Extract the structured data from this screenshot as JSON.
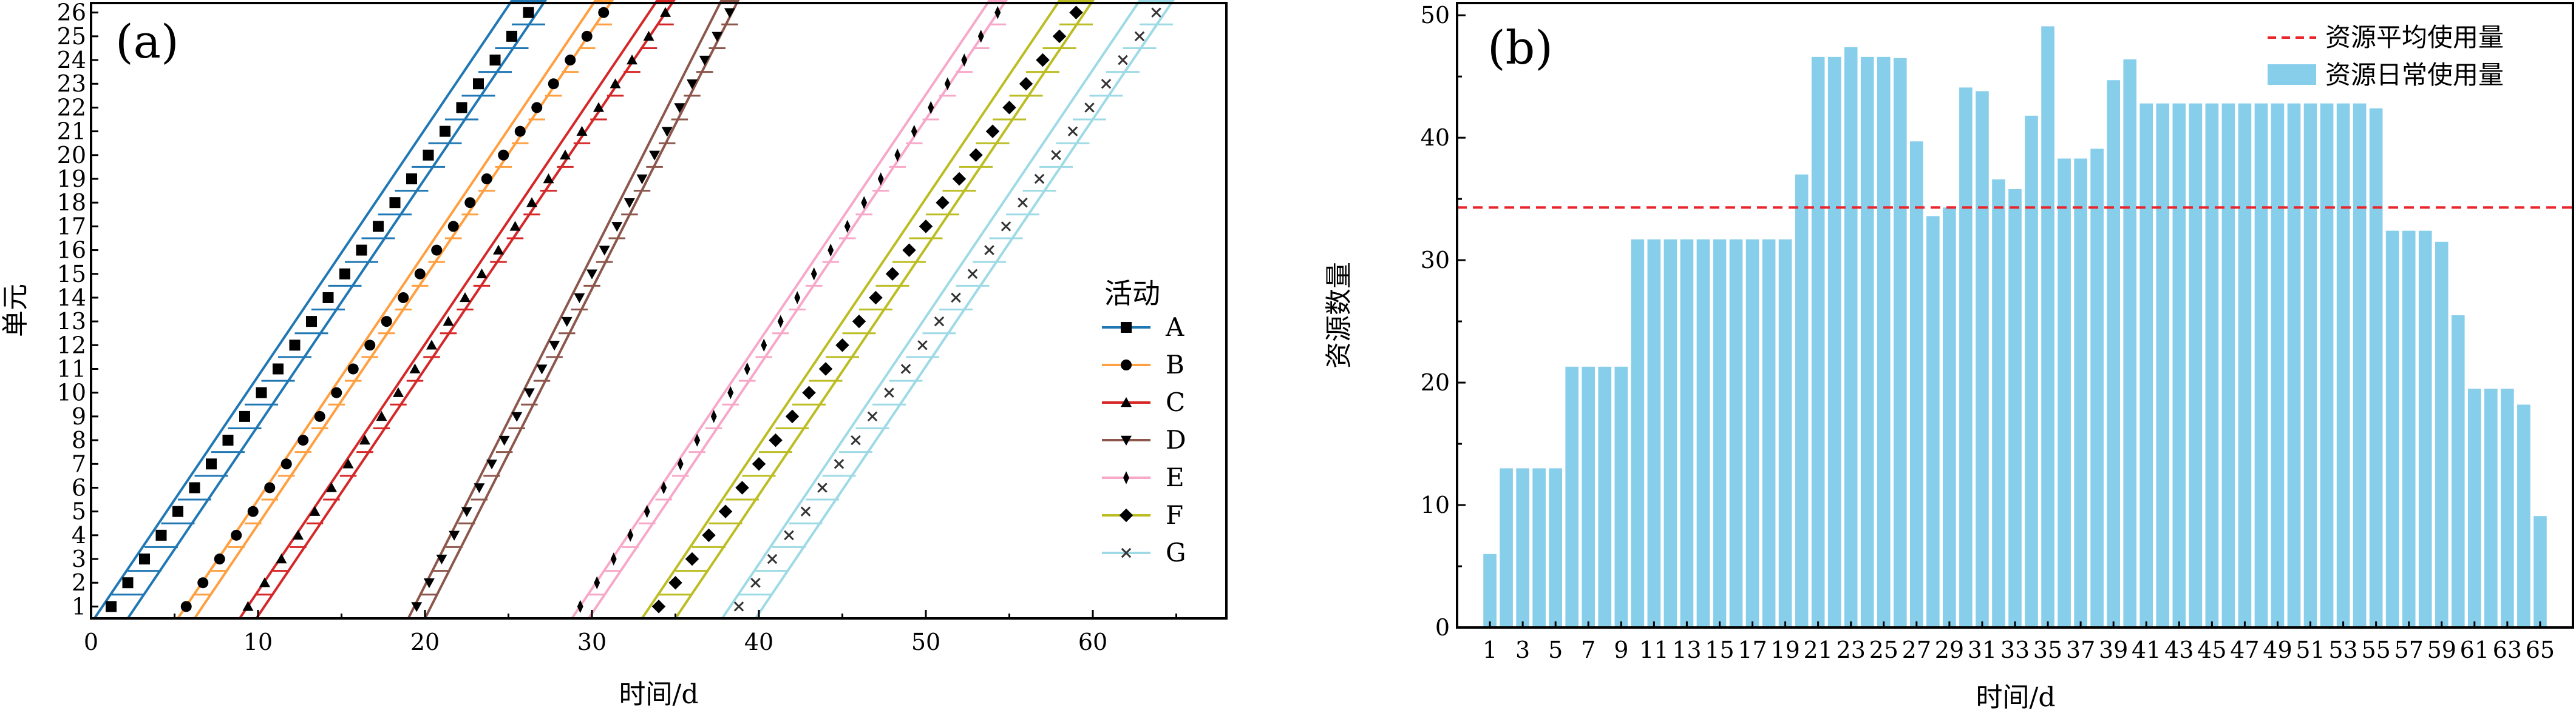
{
  "figure": {
    "panel_a_tag": "(a)",
    "panel_b_tag": "(b)"
  },
  "chart_data": [
    {
      "type": "line",
      "title": "",
      "xlabel": "时间/d",
      "ylabel": "单元",
      "xlim": [
        0,
        68
      ],
      "ylim": [
        0.5,
        26.4
      ],
      "xticks": [
        0,
        10,
        20,
        30,
        40,
        50,
        60
      ],
      "yticks": [
        1,
        2,
        3,
        4,
        5,
        6,
        7,
        8,
        9,
        10,
        11,
        12,
        13,
        14,
        15,
        16,
        17,
        18,
        19,
        20,
        21,
        22,
        23,
        24,
        25,
        26
      ],
      "grid": false,
      "legend": {
        "title": "活动",
        "placement": "center-right"
      },
      "units_from": 1,
      "units_to": 26,
      "series": [
        {
          "name": "A",
          "color": "#1f77b4",
          "marker": "square",
          "start": 0.2,
          "rate": 1.0,
          "duration": 2.0
        },
        {
          "name": "B",
          "color": "#ff9f40",
          "marker": "circle",
          "start": 5.2,
          "rate": 1.0,
          "duration": 1.0
        },
        {
          "name": "C",
          "color": "#d62728",
          "marker": "triangle-up",
          "start": 8.9,
          "rate": 1.0,
          "duration": 1.0
        },
        {
          "name": "D",
          "color": "#8c564b",
          "marker": "triangle-down",
          "start": 19.0,
          "rate": 0.75,
          "duration": 1.0
        },
        {
          "name": "E",
          "color": "#f7a8c8",
          "marker": "thin-diamond",
          "start": 28.8,
          "rate": 1.0,
          "duration": 1.0
        },
        {
          "name": "F",
          "color": "#bcbd22",
          "marker": "diamond",
          "start": 33.0,
          "rate": 1.0,
          "duration": 2.0
        },
        {
          "name": "G",
          "color": "#9edae5",
          "marker": "x",
          "start": 37.8,
          "rate": 1.0,
          "duration": 2.0
        }
      ]
    },
    {
      "type": "bar",
      "title": "",
      "xlabel": "时间/d",
      "ylabel": "资源数量",
      "xlim": [
        -1,
        67
      ],
      "ylim": [
        0,
        51
      ],
      "yticks": [
        0,
        10,
        20,
        30,
        40,
        50
      ],
      "xtick_labels": [
        "1",
        "3",
        "5",
        "7",
        "9",
        "11",
        "13",
        "15",
        "17",
        "19",
        "21",
        "23",
        "25",
        "27",
        "29",
        "31",
        "33",
        "35",
        "37",
        "39",
        "41",
        "43",
        "45",
        "47",
        "49",
        "51",
        "53",
        "55",
        "57",
        "59",
        "61",
        "63",
        "65"
      ],
      "grid": false,
      "legend": {
        "placement": "top-right"
      },
      "average": {
        "name": "资源平均使用量",
        "value": 34.3,
        "color": "#e8262b"
      },
      "series": [
        {
          "name": "资源日常使用量",
          "color": "#87ceeb",
          "x": [
            1,
            2,
            3,
            4,
            5,
            6,
            7,
            8,
            9,
            10,
            11,
            12,
            13,
            14,
            15,
            16,
            17,
            18,
            19,
            20,
            21,
            22,
            23,
            24,
            25,
            26,
            27,
            28,
            29,
            30,
            31,
            32,
            33,
            34,
            35,
            36,
            37,
            38,
            39,
            40,
            41,
            42,
            43,
            44,
            45,
            46,
            47,
            48,
            49,
            50,
            51,
            52,
            53,
            54,
            55,
            56,
            57,
            58,
            59,
            60,
            61,
            62,
            63,
            64,
            65
          ],
          "values": [
            6,
            13,
            13,
            13,
            13,
            21.3,
            21.3,
            21.3,
            21.3,
            31.7,
            31.7,
            31.7,
            31.7,
            31.7,
            31.7,
            31.7,
            31.7,
            31.7,
            31.7,
            37,
            46.6,
            46.6,
            47.4,
            46.6,
            46.6,
            46.5,
            39.7,
            33.6,
            34.3,
            44.1,
            43.8,
            36.6,
            35.8,
            41.8,
            49.1,
            38.3,
            38.3,
            39.1,
            44.7,
            46.4,
            42.8,
            42.8,
            42.8,
            42.8,
            42.8,
            42.8,
            42.8,
            42.8,
            42.8,
            42.8,
            42.8,
            42.8,
            42.8,
            42.8,
            42.4,
            32.4,
            32.4,
            32.4,
            31.5,
            25.5,
            19.5,
            19.5,
            19.5,
            18.2,
            9.1
          ]
        }
      ]
    }
  ]
}
